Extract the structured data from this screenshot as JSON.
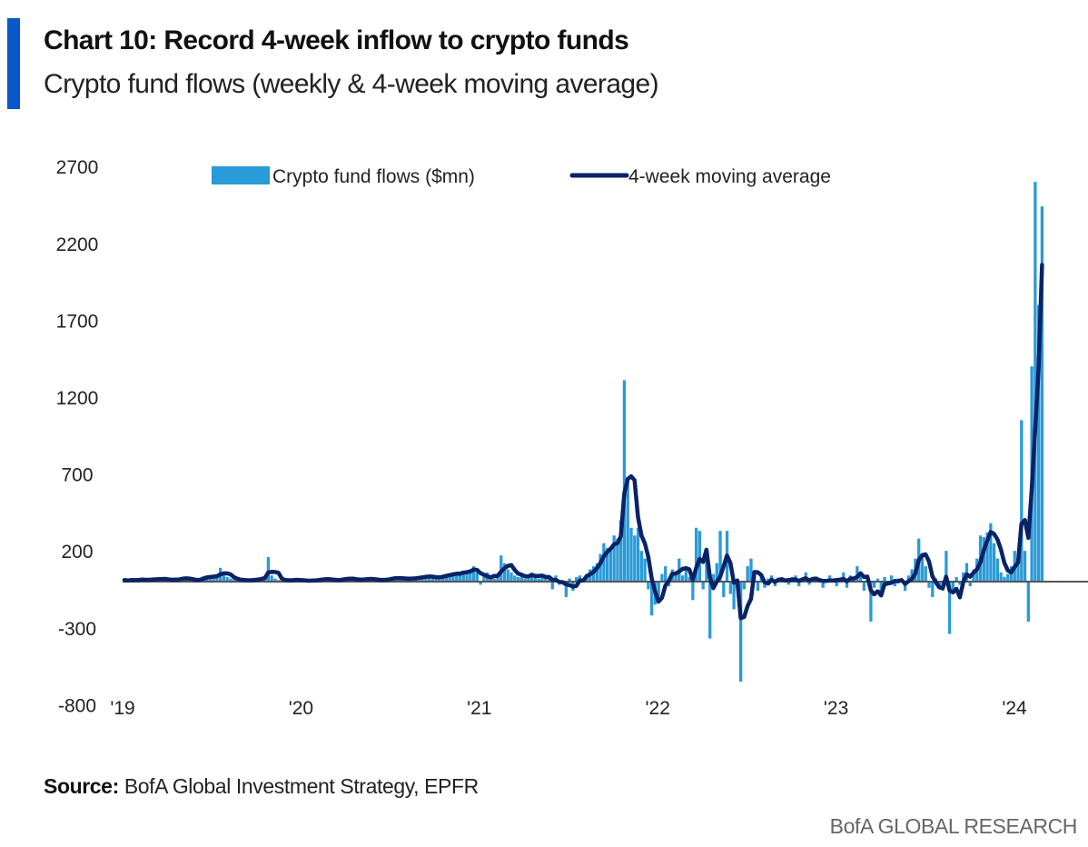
{
  "header": {
    "title": "Chart 10: Record 4-week inflow to crypto funds",
    "subtitle": "Crypto fund flows (weekly & 4-week moving average)"
  },
  "footer": {
    "source_label": "Source:",
    "source_text": " BofA Global Investment Strategy, EPFR",
    "brand": "BofA GLOBAL RESEARCH"
  },
  "chart_data": {
    "type": "bar",
    "frequency": "weekly",
    "ylim": [
      -800,
      2700
    ],
    "y_ticks": [
      "2700",
      "2200",
      "1700",
      "1200",
      "700",
      "200",
      "-300",
      "-800"
    ],
    "y_tick_values": [
      2700,
      2200,
      1700,
      1200,
      700,
      200,
      -300,
      -800
    ],
    "x_ticks": [
      "'19",
      "'20",
      "'21",
      "'22",
      "'23",
      "'24"
    ],
    "grid": false,
    "legend_position": "top",
    "colors": {
      "bars": "#2a9ad8",
      "line": "#0a2266",
      "axis": "#555555",
      "accent": "#0b57c9"
    },
    "series": [
      {
        "name": "Crypto fund flows ($mn)",
        "type": "bar",
        "values": [
          10,
          5,
          15,
          8,
          12,
          20,
          10,
          5,
          18,
          25,
          15,
          10,
          20,
          12,
          8,
          15,
          22,
          30,
          18,
          10,
          5,
          12,
          20,
          35,
          40,
          25,
          30,
          45,
          90,
          50,
          30,
          20,
          15,
          10,
          5,
          12,
          8,
          10,
          15,
          20,
          25,
          30,
          160,
          40,
          20,
          10,
          5,
          8,
          12,
          10,
          15,
          8,
          5,
          3,
          8,
          12,
          10,
          15,
          20,
          18,
          10,
          5,
          12,
          15,
          25,
          20,
          18,
          12,
          10,
          15,
          20,
          22,
          15,
          10,
          8,
          12,
          15,
          18,
          25,
          30,
          20,
          15,
          18,
          22,
          25,
          20,
          30,
          35,
          40,
          30,
          25,
          20,
          35,
          45,
          50,
          40,
          55,
          60,
          50,
          70,
          65,
          80,
          100,
          60,
          -20,
          40,
          60,
          30,
          20,
          40,
          170,
          120,
          80,
          60,
          40,
          30,
          50,
          20,
          40,
          60,
          30,
          20,
          45,
          30,
          25,
          -50,
          40,
          -20,
          10,
          -100,
          20,
          -60,
          30,
          40,
          20,
          50,
          80,
          100,
          120,
          180,
          250,
          220,
          200,
          300,
          280,
          400,
          1310,
          680,
          350,
          300,
          350,
          200,
          150,
          -50,
          -220,
          -150,
          -100,
          50,
          100,
          -30,
          80,
          60,
          150,
          40,
          100,
          30,
          -120,
          350,
          330,
          -50,
          200,
          -370,
          50,
          120,
          330,
          -100,
          330,
          -80,
          -180,
          -40,
          -650,
          -50,
          100,
          150,
          50,
          -60,
          30,
          -40,
          20,
          40,
          -30,
          20,
          30,
          10,
          -20,
          30,
          40,
          -30,
          20,
          60,
          -20,
          10,
          30,
          20,
          -40,
          10,
          40,
          20,
          -30,
          20,
          60,
          -40,
          40,
          20,
          100,
          60,
          -60,
          30,
          -260,
          -40,
          20,
          -80,
          30,
          -20,
          40,
          -30,
          20,
          10,
          -60,
          40,
          80,
          150,
          280,
          180,
          100,
          -40,
          -100,
          20,
          -30,
          -60,
          200,
          -340,
          -80,
          30,
          -20,
          60,
          120,
          -30,
          80,
          150,
          300,
          290,
          320,
          380,
          250,
          150,
          60,
          30,
          50,
          100,
          200,
          150,
          1050,
          200,
          -260,
          1400,
          2600,
          1800,
          2440
        ]
      },
      {
        "name": "4-week moving average",
        "type": "line",
        "window": 4
      }
    ]
  }
}
